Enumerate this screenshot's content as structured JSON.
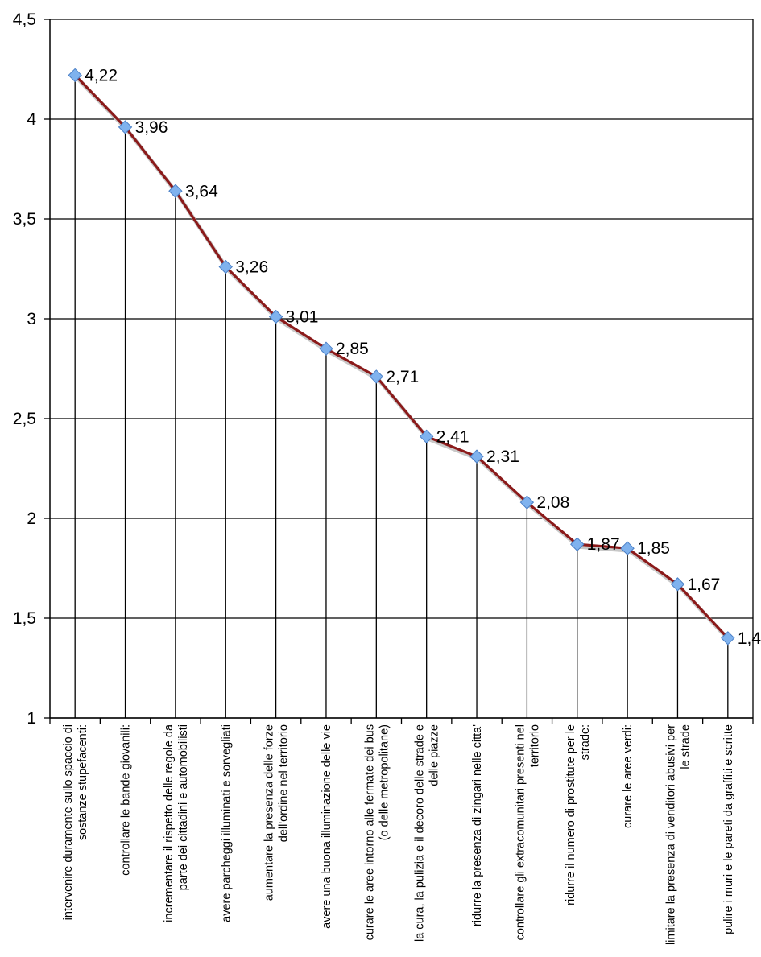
{
  "chart_data": {
    "type": "line",
    "title": "",
    "xlabel": "",
    "ylabel": "",
    "ylim": [
      1,
      4.5
    ],
    "yticks": [
      "1",
      "1,5",
      "2",
      "2,5",
      "3",
      "3,5",
      "4",
      "4,5"
    ],
    "grid": true,
    "legend": "none",
    "categories": [
      [
        "intervenire duramente sullo spaccio di",
        "sostanze stupefacenti:"
      ],
      [
        "controllare le bande giovanili:"
      ],
      [
        "incrementare il rispetto delle regole da",
        "parte dei cittadini e automobilisti"
      ],
      [
        "avere parcheggi illuminati e sorvegliati"
      ],
      [
        "aumentare la presenza delle forze",
        "dell'ordine nel territorio"
      ],
      [
        "avere una buona illuminazione delle vie"
      ],
      [
        "curare le aree intorno alle fermate dei bus",
        "(o delle metropolitane)"
      ],
      [
        "la cura, la pulizia e il decoro delle strade e",
        "delle piazze"
      ],
      [
        "ridurre la presenza di zingari nelle citta'"
      ],
      [
        "controllare gli extracomunitari presenti nel",
        "territorio"
      ],
      [
        "ridurre il numero di prostitute per le",
        "strade:"
      ],
      [
        "curare le aree verdi:"
      ],
      [
        "limitare la presenza di venditori abusivi per",
        "le strade"
      ],
      [
        "pulire i muri e le pareti da graffiti e scritte"
      ]
    ],
    "values": [
      4.22,
      3.96,
      3.64,
      3.26,
      3.01,
      2.85,
      2.71,
      2.41,
      2.31,
      2.08,
      1.87,
      1.85,
      1.67,
      1.4
    ],
    "data_labels": [
      "4,22",
      "3,96",
      "3,64",
      "3,26",
      "3,01",
      "2,85",
      "2,71",
      "2,41",
      "2,31",
      "2,08",
      "1,87",
      "1,85",
      "1,67",
      "1,4"
    ],
    "colors": {
      "line": "#8b1a1a",
      "line_shadow": "#c8c8c8",
      "marker": "#7fb2ee",
      "marker_edge": "#4a7fc6",
      "grid": "#000000",
      "drop_line": "#000000"
    }
  }
}
